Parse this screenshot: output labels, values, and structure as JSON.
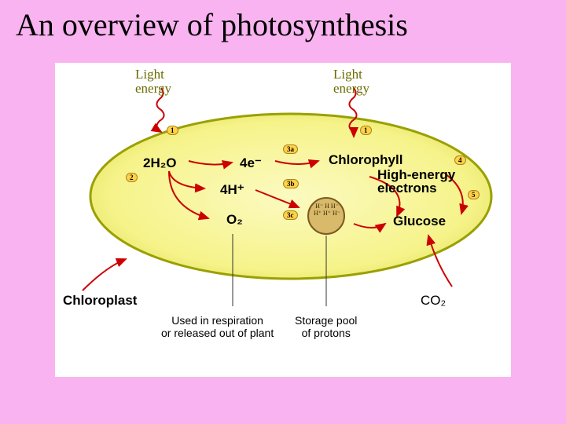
{
  "title": "An overview of photosynthesis",
  "colors": {
    "page_bg": "#f9b3f0",
    "panel_bg": "#ffffff",
    "cell_fill": "#f6f38a",
    "cell_stroke": "#9aa000",
    "cell_glow": "#e0e05a",
    "arrow": "#cc0000",
    "step_bg": "#ffd24a",
    "step_border": "#b0801a",
    "olive": "#6b6b00",
    "proton_fill": "#d9b96a",
    "proton_stroke": "#7a5a20"
  },
  "labels": {
    "light1": "Light\nenergy",
    "light2": "Light\nenergy",
    "chloroplast": "Chloroplast",
    "used": "Used in respiration\nor released out of plant",
    "storage": "Storage pool\nof protons",
    "co2": "CO₂"
  },
  "textbits": {
    "h2o": "2H₂O",
    "em": "4e⁻",
    "hp": "4H⁺",
    "o2": "O₂",
    "chlorophyll": "Chlorophyll",
    "high": "High-energy\nelectrons",
    "glucose": "Glucose"
  },
  "steps": {
    "s1": "1",
    "s2": "2",
    "s3a": "3a",
    "s3b": "3b",
    "s3c": "3c",
    "s4": "4",
    "s5": "5"
  },
  "protons": [
    "H⁻",
    "H",
    "H⁻",
    "H⁺",
    "H⁺",
    "H⁻"
  ]
}
